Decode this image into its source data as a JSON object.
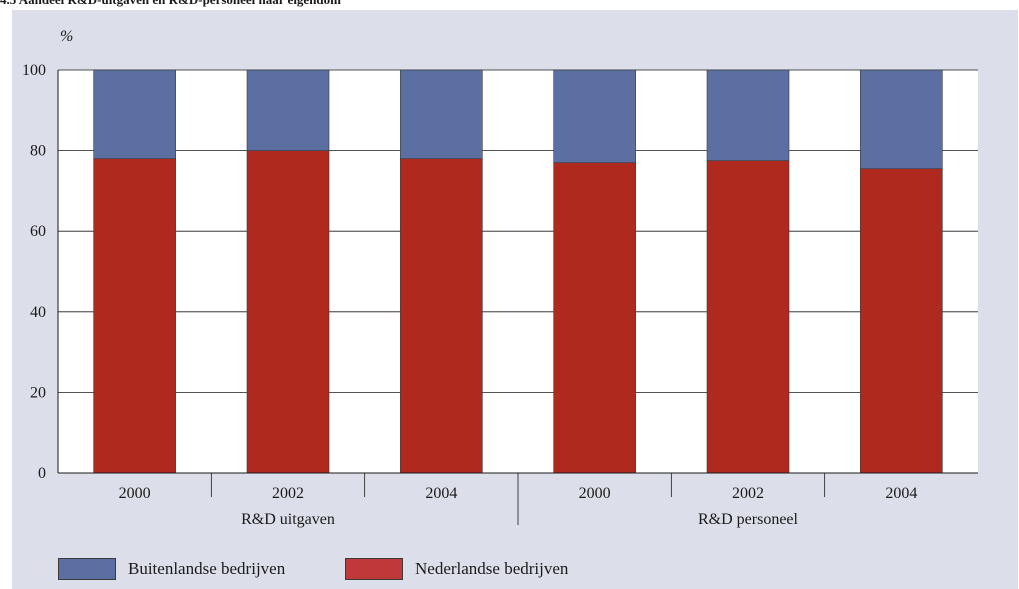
{
  "title": "4.5 Aandeel R&D-uitgaven en R&D-personeel naar eigendom",
  "colors": {
    "buitenlands": "#5b6fa3",
    "nederlands": "#b0291e",
    "panel_bg": "#dcdfe9",
    "plot_bg": "#ffffff"
  },
  "chart_data": {
    "type": "bar",
    "stacked": true,
    "ylabel": "%",
    "ylim": [
      0,
      100
    ],
    "yticks": [
      0,
      20,
      40,
      60,
      80,
      100
    ],
    "grid": true,
    "categories": [
      "2000",
      "2002",
      "2004",
      "2000",
      "2002",
      "2004"
    ],
    "groups": [
      {
        "label": "R&D uitgaven",
        "categories": [
          "2000",
          "2002",
          "2004"
        ]
      },
      {
        "label": "R&D personeel",
        "categories": [
          "2000",
          "2002",
          "2004"
        ]
      }
    ],
    "series": [
      {
        "name": "Nederlandse bedrijven",
        "values": [
          78,
          80,
          78,
          77,
          77.5,
          75.5
        ]
      },
      {
        "name": "Buitenlandse bedrijven",
        "values": [
          22,
          20,
          22,
          23,
          22.5,
          24.5
        ]
      }
    ],
    "legend_position": "bottom-left"
  },
  "legend": [
    {
      "label": "Buitenlandse bedrijven",
      "color": "#5b6fa3"
    },
    {
      "label": "Nederlandse bedrijven",
      "color": "#c0393a"
    }
  ]
}
